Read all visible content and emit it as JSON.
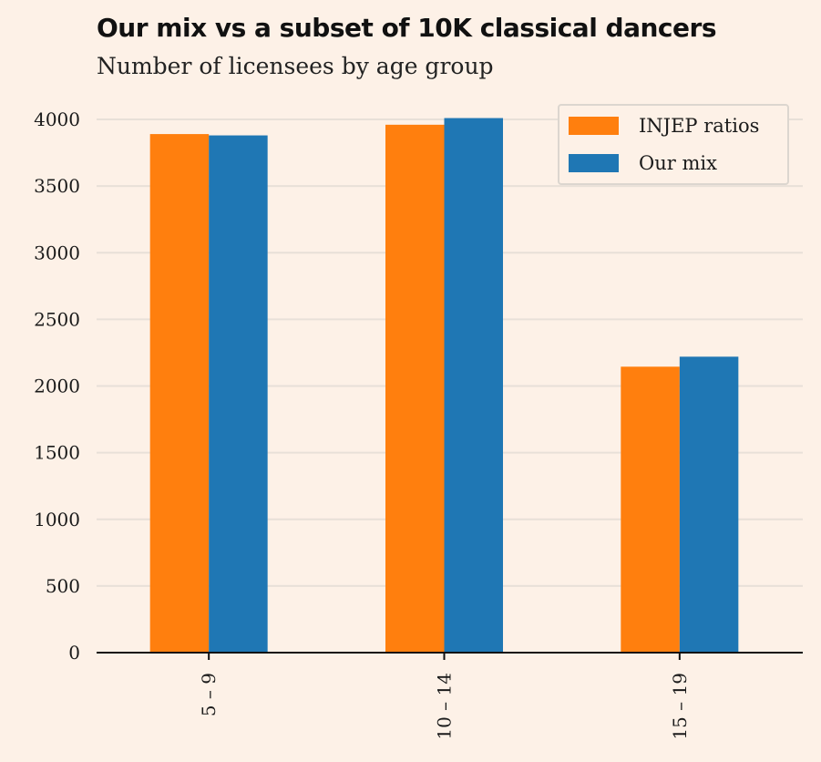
{
  "title": "Our mix vs a subset of 10K classical dancers",
  "subtitle": "Number of licensees by age group",
  "colors": {
    "background": "#fdf1e7",
    "grid": "#e8e0d8",
    "injep": "#ff7f0e",
    "our_mix": "#1f77b4"
  },
  "chart_data": {
    "type": "bar",
    "categories": [
      "5 – 9",
      "10 – 14",
      "15 – 19"
    ],
    "series": [
      {
        "name": "INJEP ratios",
        "values": [
          3890,
          3960,
          2145
        ]
      },
      {
        "name": "Our mix",
        "values": [
          3880,
          4010,
          2220
        ]
      }
    ],
    "yticks": [
      "0",
      "500",
      "1000",
      "1500",
      "2000",
      "2500",
      "3000",
      "3500",
      "4000"
    ],
    "ylim": [
      0,
      4000
    ],
    "grid": true,
    "legend": "top-right"
  }
}
